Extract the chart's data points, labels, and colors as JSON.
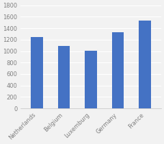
{
  "categories": [
    "Netherlands",
    "Belgium",
    "Luxemburg",
    "Germany",
    "France"
  ],
  "values": [
    1240,
    1090,
    1005,
    1335,
    1530
  ],
  "bar_color": "#4472C4",
  "ylim": [
    0,
    1800
  ],
  "yticks": [
    0,
    200,
    400,
    600,
    800,
    1000,
    1200,
    1400,
    1600,
    1800
  ],
  "background_color": "#F2F2F2",
  "plot_bg_color": "#F2F2F2",
  "grid_color": "#FFFFFF",
  "bar_width": 0.45,
  "tick_fontsize": 6.0,
  "tick_color": "#808080"
}
